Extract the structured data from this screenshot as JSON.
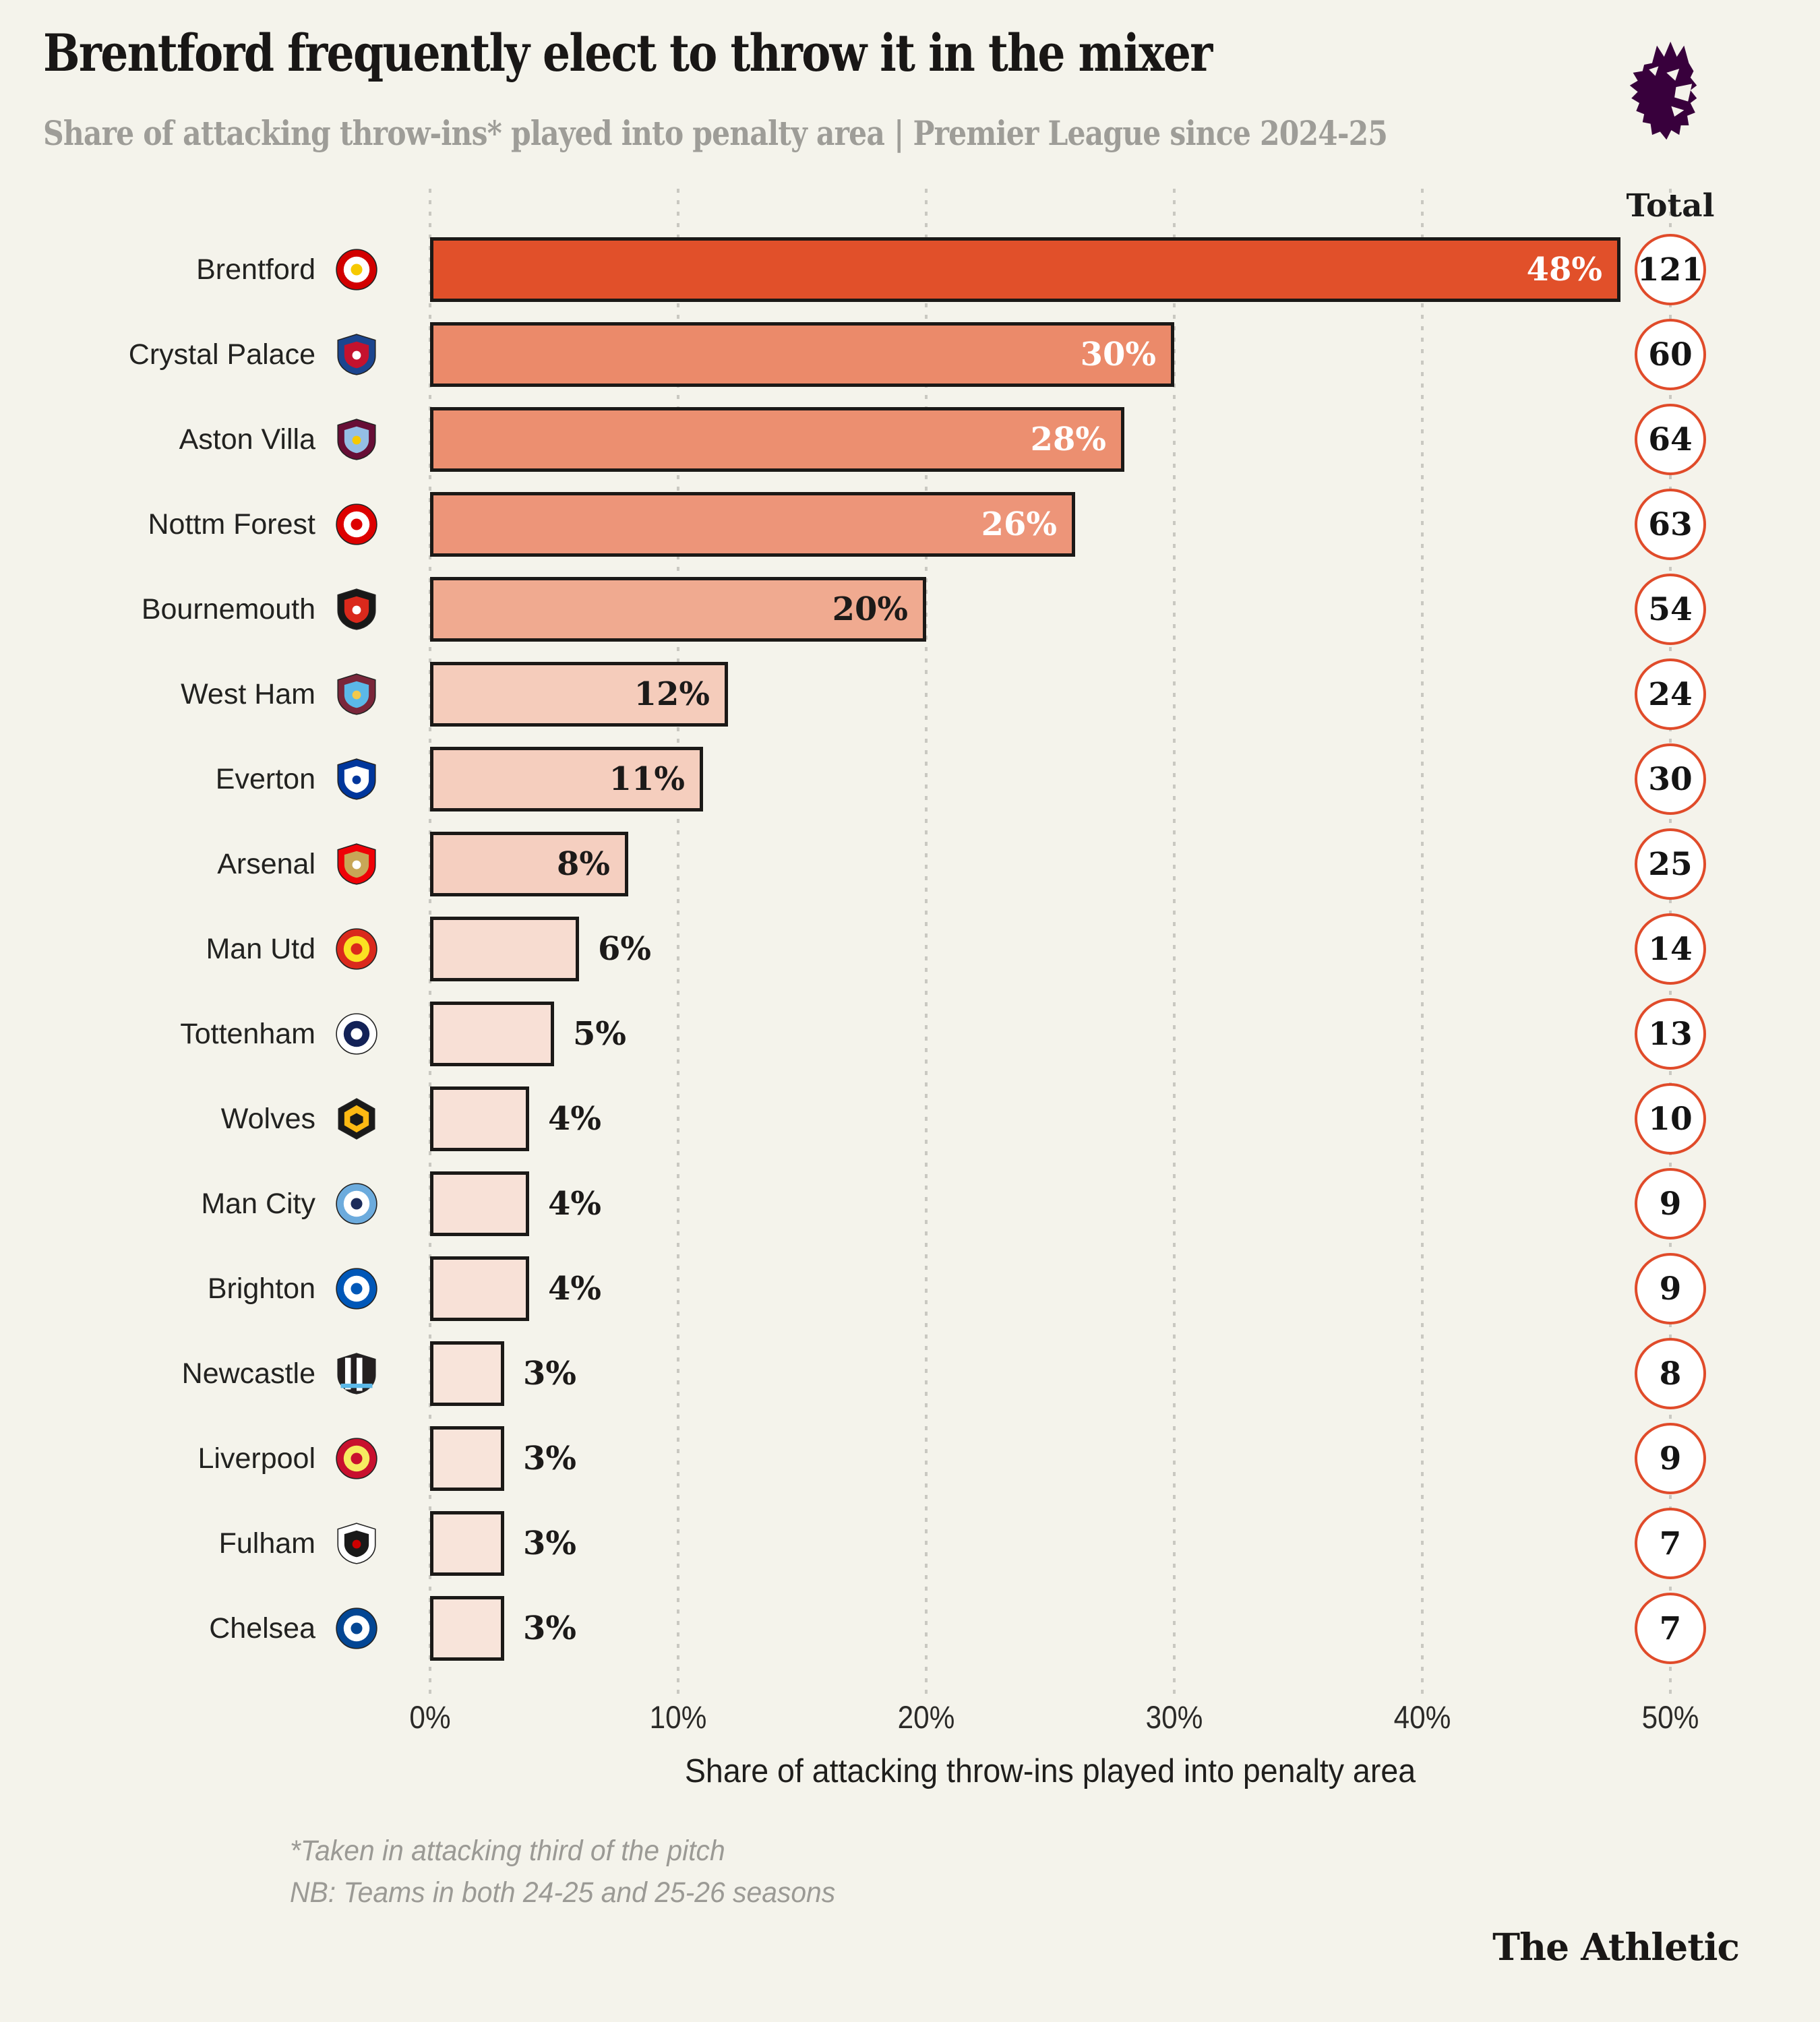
{
  "page": {
    "background": "#f4f3eb"
  },
  "header": {
    "title": "Brentford frequently elect to throw it in the mixer",
    "subtitle": "Share of attacking throw-ins* played into penalty area | Premier League since 2024-25",
    "logo": "premier-league-lion",
    "logo_color": "#38003c"
  },
  "chart_data": {
    "type": "bar",
    "orientation": "horizontal",
    "title": "Brentford frequently elect to throw it in the mixer",
    "xlabel": "Share of attacking throw-ins played into penalty area",
    "xlim": [
      0,
      50
    ],
    "x_ticks": [
      "0%",
      "10%",
      "20%",
      "30%",
      "40%",
      "50%"
    ],
    "grid": true,
    "total_header": "Total",
    "categories": [
      "Brentford",
      "Crystal Palace",
      "Aston Villa",
      "Nottm Forest",
      "Bournemouth",
      "West Ham",
      "Everton",
      "Arsenal",
      "Man Utd",
      "Tottenham",
      "Wolves",
      "Man City",
      "Brighton",
      "Newcastle",
      "Liverpool",
      "Fulham",
      "Chelsea"
    ],
    "values": [
      48,
      30,
      28,
      26,
      20,
      12,
      11,
      8,
      6,
      5,
      4,
      4,
      4,
      3,
      3,
      3,
      3
    ],
    "totals": [
      121,
      60,
      64,
      63,
      54,
      24,
      30,
      25,
      14,
      13,
      10,
      9,
      9,
      8,
      9,
      7,
      7
    ],
    "teams": [
      {
        "name": "Brentford",
        "value": 48,
        "pct_label": "48%",
        "total": 121,
        "bar_color": "#e1502a",
        "label_inside": true,
        "label_color": "#ffffff",
        "badge": {
          "shape": "circle",
          "colors": [
            "#d20000",
            "#ffffff",
            "#f6c900"
          ]
        }
      },
      {
        "name": "Crystal Palace",
        "value": 30,
        "pct_label": "30%",
        "total": 60,
        "bar_color": "#eb8a6a",
        "label_inside": true,
        "label_color": "#ffffff",
        "badge": {
          "shape": "shield",
          "colors": [
            "#1b458f",
            "#c4122e",
            "#ffffff"
          ]
        }
      },
      {
        "name": "Aston Villa",
        "value": 28,
        "pct_label": "28%",
        "total": 64,
        "bar_color": "#ec8f70",
        "label_inside": true,
        "label_color": "#ffffff",
        "badge": {
          "shape": "shield",
          "colors": [
            "#670e36",
            "#94bee5",
            "#f6c900"
          ]
        }
      },
      {
        "name": "Nottm Forest",
        "value": 26,
        "pct_label": "26%",
        "total": 63,
        "bar_color": "#ed9579",
        "label_inside": true,
        "label_color": "#ffffff",
        "badge": {
          "shape": "circle",
          "colors": [
            "#dd0000",
            "#ffffff",
            "#dd0000"
          ]
        }
      },
      {
        "name": "Bournemouth",
        "value": 20,
        "pct_label": "20%",
        "total": 54,
        "bar_color": "#f0aa90",
        "label_inside": true,
        "label_color": "#1c1a19",
        "badge": {
          "shape": "shield",
          "colors": [
            "#181818",
            "#da291c",
            "#ffffff"
          ]
        }
      },
      {
        "name": "West Ham",
        "value": 12,
        "pct_label": "12%",
        "total": 24,
        "bar_color": "#f5ccbb",
        "label_inside": true,
        "label_color": "#1c1a19",
        "badge": {
          "shape": "shield",
          "colors": [
            "#7a263a",
            "#5bb8e8",
            "#f2c94c"
          ]
        }
      },
      {
        "name": "Everton",
        "value": 11,
        "pct_label": "11%",
        "total": 30,
        "bar_color": "#f5cebe",
        "label_inside": true,
        "label_color": "#1c1a19",
        "badge": {
          "shape": "shield",
          "colors": [
            "#00369c",
            "#ffffff",
            "#00369c"
          ]
        }
      },
      {
        "name": "Arsenal",
        "value": 8,
        "pct_label": "8%",
        "total": 25,
        "bar_color": "#f5cfc0",
        "label_inside": true,
        "label_color": "#1c1a19",
        "badge": {
          "shape": "shield",
          "colors": [
            "#ef0107",
            "#c8a657",
            "#ffffff"
          ]
        }
      },
      {
        "name": "Man Utd",
        "value": 6,
        "pct_label": "6%",
        "total": 14,
        "bar_color": "#f7dcd0",
        "label_inside": false,
        "label_color": "#1c1a19",
        "badge": {
          "shape": "circle",
          "colors": [
            "#da291c",
            "#fbe122",
            "#da291c"
          ]
        }
      },
      {
        "name": "Tottenham",
        "value": 5,
        "pct_label": "5%",
        "total": 13,
        "bar_color": "#f8e0d6",
        "label_inside": false,
        "label_color": "#1c1a19",
        "badge": {
          "shape": "circle",
          "colors": [
            "#ffffff",
            "#132257",
            "#ffffff"
          ]
        }
      },
      {
        "name": "Wolves",
        "value": 4,
        "pct_label": "4%",
        "total": 10,
        "bar_color": "#f8e1d7",
        "label_inside": false,
        "label_color": "#1c1a19",
        "badge": {
          "shape": "hex",
          "colors": [
            "#1a1a1a",
            "#fdb913",
            "#1a1a1a"
          ]
        }
      },
      {
        "name": "Man City",
        "value": 4,
        "pct_label": "4%",
        "total": 9,
        "bar_color": "#f8e1d7",
        "label_inside": false,
        "label_color": "#1c1a19",
        "badge": {
          "shape": "circle",
          "colors": [
            "#6cabdd",
            "#ffffff",
            "#1c2c5b"
          ]
        }
      },
      {
        "name": "Brighton",
        "value": 4,
        "pct_label": "4%",
        "total": 9,
        "bar_color": "#f8e1d7",
        "label_inside": false,
        "label_color": "#1c1a19",
        "badge": {
          "shape": "circle",
          "colors": [
            "#0057b8",
            "#ffffff",
            "#0057b8"
          ]
        }
      },
      {
        "name": "Newcastle",
        "value": 3,
        "pct_label": "3%",
        "total": 8,
        "bar_color": "#f8e4da",
        "label_inside": false,
        "label_color": "#1c1a19",
        "badge": {
          "shape": "stripes",
          "colors": [
            "#241f20",
            "#ffffff",
            "#5bb8e8"
          ]
        }
      },
      {
        "name": "Liverpool",
        "value": 3,
        "pct_label": "3%",
        "total": 9,
        "bar_color": "#f8e4da",
        "label_inside": false,
        "label_color": "#1c1a19",
        "badge": {
          "shape": "circle",
          "colors": [
            "#c8102e",
            "#f6eb61",
            "#c8102e"
          ]
        }
      },
      {
        "name": "Fulham",
        "value": 3,
        "pct_label": "3%",
        "total": 7,
        "bar_color": "#f8e4da",
        "label_inside": false,
        "label_color": "#1c1a19",
        "badge": {
          "shape": "shield",
          "colors": [
            "#ffffff",
            "#1a1a1a",
            "#cc0000"
          ]
        }
      },
      {
        "name": "Chelsea",
        "value": 3,
        "pct_label": "3%",
        "total": 7,
        "bar_color": "#f8e4da",
        "label_inside": false,
        "label_color": "#1c1a19",
        "badge": {
          "shape": "circle",
          "colors": [
            "#034694",
            "#ffffff",
            "#034694"
          ]
        }
      }
    ],
    "style": {
      "bar_border": "#1b1917",
      "circle_border": "#e04b2a",
      "gridline_color": "#c9c8c1",
      "label_white": "#ffffff",
      "label_dark": "#1c1a19"
    }
  },
  "footnotes": [
    "*Taken in attacking third of the pitch",
    "NB: Teams in both 24-25 and 25-26 seasons"
  ],
  "branding": {
    "label": "The Athletic"
  }
}
